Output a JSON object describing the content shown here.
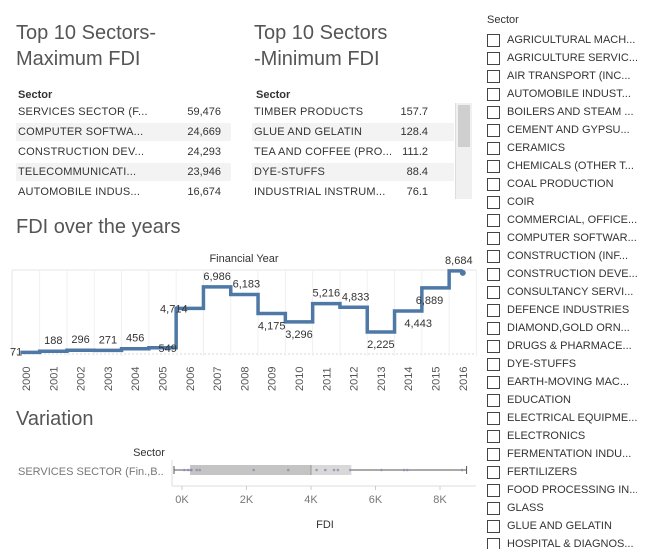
{
  "max_panel": {
    "title_line1": "Top 10  Sectors-",
    "title_line2": "Maximum FDI",
    "column_header": "Sector",
    "rows": [
      {
        "name": "SERVICES SECTOR (F...",
        "value": "59,476"
      },
      {
        "name": "COMPUTER SOFTWA...",
        "value": "24,669"
      },
      {
        "name": "CONSTRUCTION DEV...",
        "value": "24,293"
      },
      {
        "name": "TELECOMMUNICATI...",
        "value": "23,946"
      },
      {
        "name": "AUTOMOBILE INDUS...",
        "value": "16,674"
      }
    ]
  },
  "min_panel": {
    "title_line1": "Top 10  Sectors",
    "title_line2": "-Minimum FDI",
    "column_header": "Sector",
    "rows": [
      {
        "name": "TIMBER PRODUCTS",
        "value": "157.7"
      },
      {
        "name": "GLUE AND GELATIN",
        "value": "128.4"
      },
      {
        "name": "TEA AND COFFEE (PRO...",
        "value": "111.2"
      },
      {
        "name": "DYE-STUFFS",
        "value": "88.4"
      },
      {
        "name": "INDUSTRIAL INSTRUM...",
        "value": "76.1"
      }
    ]
  },
  "fdi_title": "FDI over the years",
  "variation_title": "Variation",
  "legend": {
    "title": "Sector",
    "items": [
      "AGRICULTURAL MACH...",
      "AGRICULTURE SERVIC...",
      "AIR TRANSPORT (INC...",
      "AUTOMOBILE INDUST...",
      "BOILERS AND STEAM ...",
      "CEMENT AND GYPSU...",
      "CERAMICS",
      "CHEMICALS (OTHER T...",
      "COAL PRODUCTION",
      "COIR",
      "COMMERCIAL, OFFICE...",
      "COMPUTER SOFTWAR...",
      "CONSTRUCTION (INF...",
      "CONSTRUCTION DEVE...",
      "CONSULTANCY SERVI...",
      "DEFENCE INDUSTRIES",
      "DIAMOND,GOLD ORN...",
      "DRUGS & PHARMACE...",
      "DYE-STUFFS",
      "EARTH-MOVING MAC...",
      "EDUCATION",
      "ELECTRICAL EQUIPME...",
      "ELECTRONICS",
      "FERMENTATION INDU...",
      "FERTILIZERS",
      "FOOD PROCESSING IN...",
      "GLASS",
      "GLUE AND GELATIN",
      "HOSPITAL & DIAGNOS..."
    ]
  },
  "chart_data": [
    {
      "type": "line",
      "step": true,
      "title": "FDI over the years",
      "header": "Financial Year",
      "x": [
        "2000",
        "2001",
        "2002",
        "2003",
        "2004",
        "2005",
        "2006",
        "2007",
        "2008",
        "2009",
        "2010",
        "2011",
        "2012",
        "2013",
        "2014",
        "2015",
        "2016"
      ],
      "labels": [
        "71",
        "188",
        "296",
        "271",
        "456",
        "549",
        "4,714",
        "6,986",
        "6,183",
        "4,175",
        "3,296",
        "5,216",
        "4,833",
        "2,225",
        "4,443",
        "6,889",
        "8,684"
      ],
      "values": [
        71,
        188,
        296,
        271,
        456,
        549,
        4714,
        6986,
        6183,
        4175,
        3296,
        5216,
        4833,
        2225,
        4443,
        6889,
        8684
      ],
      "ylim": [
        0,
        9200
      ],
      "color": "#4e79a7"
    },
    {
      "type": "box",
      "title": "Variation",
      "row_header": "Sector",
      "category": "SERVICES SECTOR (Fin.,B..",
      "xlabel": "FDI",
      "ticks": [
        "0K",
        "2K",
        "4K",
        "6K",
        "8K"
      ],
      "tick_values": [
        0,
        2000,
        4000,
        6000,
        8000
      ],
      "xlim": [
        -350,
        9300
      ],
      "whisker_low": 0,
      "q1": 250,
      "median": 4000,
      "q3": 5250,
      "whisker_high": 8700,
      "points": [
        71,
        188,
        271,
        296,
        456,
        549,
        2225,
        3296,
        4175,
        4443,
        4714,
        4833,
        5216,
        6183,
        6889,
        6986,
        8684
      ]
    }
  ]
}
